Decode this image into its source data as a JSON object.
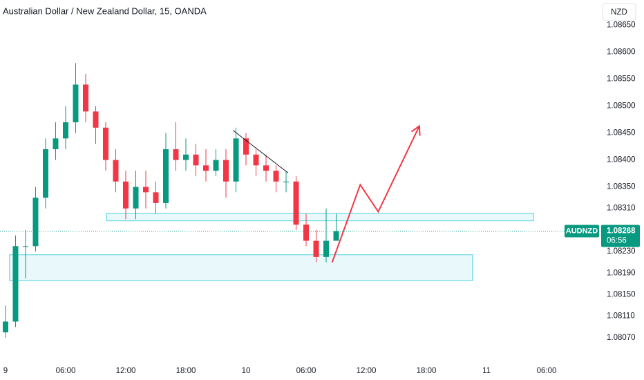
{
  "chart_data": {
    "type": "candlestick",
    "title": "Australian Dollar / New Zealand Dollar, 15, OANDA",
    "currency": "NZD",
    "symbol": "AUDNZD",
    "last_price": 1.08268,
    "countdown": "06:56",
    "up_color": "#089981",
    "down_color": "#f23645",
    "x": [
      0,
      1,
      2,
      3,
      4,
      5,
      6,
      7,
      8,
      9,
      10,
      11,
      12,
      13,
      14,
      15,
      16,
      17,
      18,
      19,
      20,
      21,
      22,
      23,
      24,
      25,
      26,
      27,
      28,
      29,
      30,
      31,
      32,
      33
    ],
    "open": [
      1.0808,
      1.081,
      1.0824,
      1.0824,
      1.0833,
      1.0842,
      1.0844,
      1.0847,
      1.0854,
      1.0849,
      1.0846,
      1.084,
      1.0836,
      1.0831,
      1.0835,
      1.0834,
      1.0832,
      1.0842,
      1.084,
      1.0841,
      1.0839,
      1.0838,
      1.084,
      1.0836,
      1.0844,
      1.0841,
      1.0839,
      1.0838,
      1.0836,
      1.0836,
      1.0828,
      1.0825,
      1.0822,
      1.0825
    ],
    "high": [
      1.0813,
      1.0826,
      1.0827,
      1.0835,
      1.0844,
      1.0847,
      1.085,
      1.0858,
      1.0856,
      1.085,
      1.0847,
      1.0842,
      1.0838,
      1.0838,
      1.0838,
      1.0836,
      1.0845,
      1.0847,
      1.0844,
      1.0843,
      1.0842,
      1.0842,
      1.0842,
      1.0846,
      1.0845,
      1.0842,
      1.0841,
      1.0839,
      1.0838,
      1.0837,
      1.083,
      1.0827,
      1.0831,
      1.083
    ],
    "low": [
      1.0807,
      1.0809,
      1.0818,
      1.0823,
      1.0831,
      1.084,
      1.0842,
      1.0845,
      1.0847,
      1.0843,
      1.0838,
      1.0834,
      1.0829,
      1.0829,
      1.0831,
      1.083,
      1.0831,
      1.0838,
      1.0838,
      1.0837,
      1.0836,
      1.0837,
      1.0833,
      1.0834,
      1.0839,
      1.0837,
      1.0836,
      1.0834,
      1.0834,
      1.0827,
      1.0824,
      1.0821,
      1.0821,
      1.0825
    ],
    "close": [
      1.081,
      1.0824,
      1.0824,
      1.0833,
      1.0842,
      1.0844,
      1.0847,
      1.0854,
      1.0849,
      1.0846,
      1.084,
      1.0836,
      1.0831,
      1.0835,
      1.0834,
      1.0832,
      1.0842,
      1.084,
      1.0841,
      1.0839,
      1.0838,
      1.084,
      1.0836,
      1.0844,
      1.0841,
      1.0839,
      1.0838,
      1.0836,
      1.0836,
      1.0828,
      1.0825,
      1.0822,
      1.0825,
      1.08268
    ],
    "xlim": [
      -0.55,
      59.1
    ],
    "ylim": [
      1.0803,
      1.08697
    ],
    "xticks": [
      {
        "value": 0,
        "label": "9"
      },
      {
        "value": 6,
        "label": "06:00"
      },
      {
        "value": 12,
        "label": "12:00"
      },
      {
        "value": 18,
        "label": "18:00"
      },
      {
        "value": 24,
        "label": "10"
      },
      {
        "value": 30,
        "label": "06:00"
      },
      {
        "value": 36,
        "label": "12:00"
      },
      {
        "value": 42,
        "label": "18:00"
      },
      {
        "value": 48,
        "label": "11"
      },
      {
        "value": 54,
        "label": "06:00"
      }
    ],
    "yticks": [
      {
        "value": 1.0865,
        "label": "1.08650"
      },
      {
        "value": 1.086,
        "label": "1.08600"
      },
      {
        "value": 1.0855,
        "label": "1.08550"
      },
      {
        "value": 1.085,
        "label": "1.08500"
      },
      {
        "value": 1.0845,
        "label": "1.08450"
      },
      {
        "value": 1.084,
        "label": "1.08400"
      },
      {
        "value": 1.0835,
        "label": "1.08350"
      },
      {
        "value": 1.0831,
        "label": "1.08310"
      },
      {
        "value": 1.0823,
        "label": "1.08230"
      },
      {
        "value": 1.0819,
        "label": "1.08190"
      },
      {
        "value": 1.0815,
        "label": "1.08150"
      },
      {
        "value": 1.0811,
        "label": "1.08110"
      },
      {
        "value": 1.0807,
        "label": "1.08070"
      }
    ],
    "zones": [
      {
        "x": [
          10.1,
          52.7
        ],
        "y": [
          1.08287,
          1.08301
        ],
        "color": "#4dd0e1"
      },
      {
        "x": [
          0.4,
          46.6
        ],
        "y": [
          1.08176,
          1.08224
        ],
        "color": "#4dd0e1"
      }
    ],
    "trend_line": {
      "x": [
        22.7,
        28.2
      ],
      "y": [
        1.08455,
        1.08376
      ],
      "color": "#131722"
    },
    "projection": {
      "x": [
        32.6,
        35.4,
        37.2,
        41.3
      ],
      "y": [
        1.0821,
        1.08354,
        1.08304,
        1.08463
      ],
      "color": "#f23645"
    }
  }
}
